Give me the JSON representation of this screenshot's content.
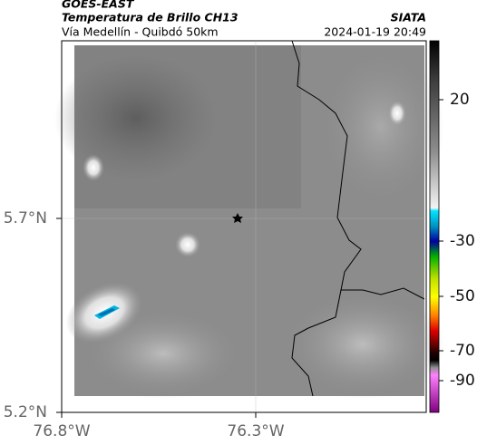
{
  "header": {
    "title": "GOES-EAST",
    "subtitle": "Temperatura de Brillo CH13",
    "route": "Vía Medellín - Quibdó 50km",
    "source": "SIATA",
    "timestamp": "2024-01-19 20:49"
  },
  "map": {
    "lat_ticks": [
      {
        "value": 5.7,
        "label": "5.7°N"
      },
      {
        "value": 5.2,
        "label": "5.2°N"
      }
    ],
    "lon_ticks": [
      {
        "value": -76.8,
        "label": "76.8°W"
      },
      {
        "value": -76.3,
        "label": "76.3°W"
      }
    ]
  },
  "colorbar": {
    "ticks": [
      20,
      -30,
      -50,
      -70,
      -90
    ]
  }
}
